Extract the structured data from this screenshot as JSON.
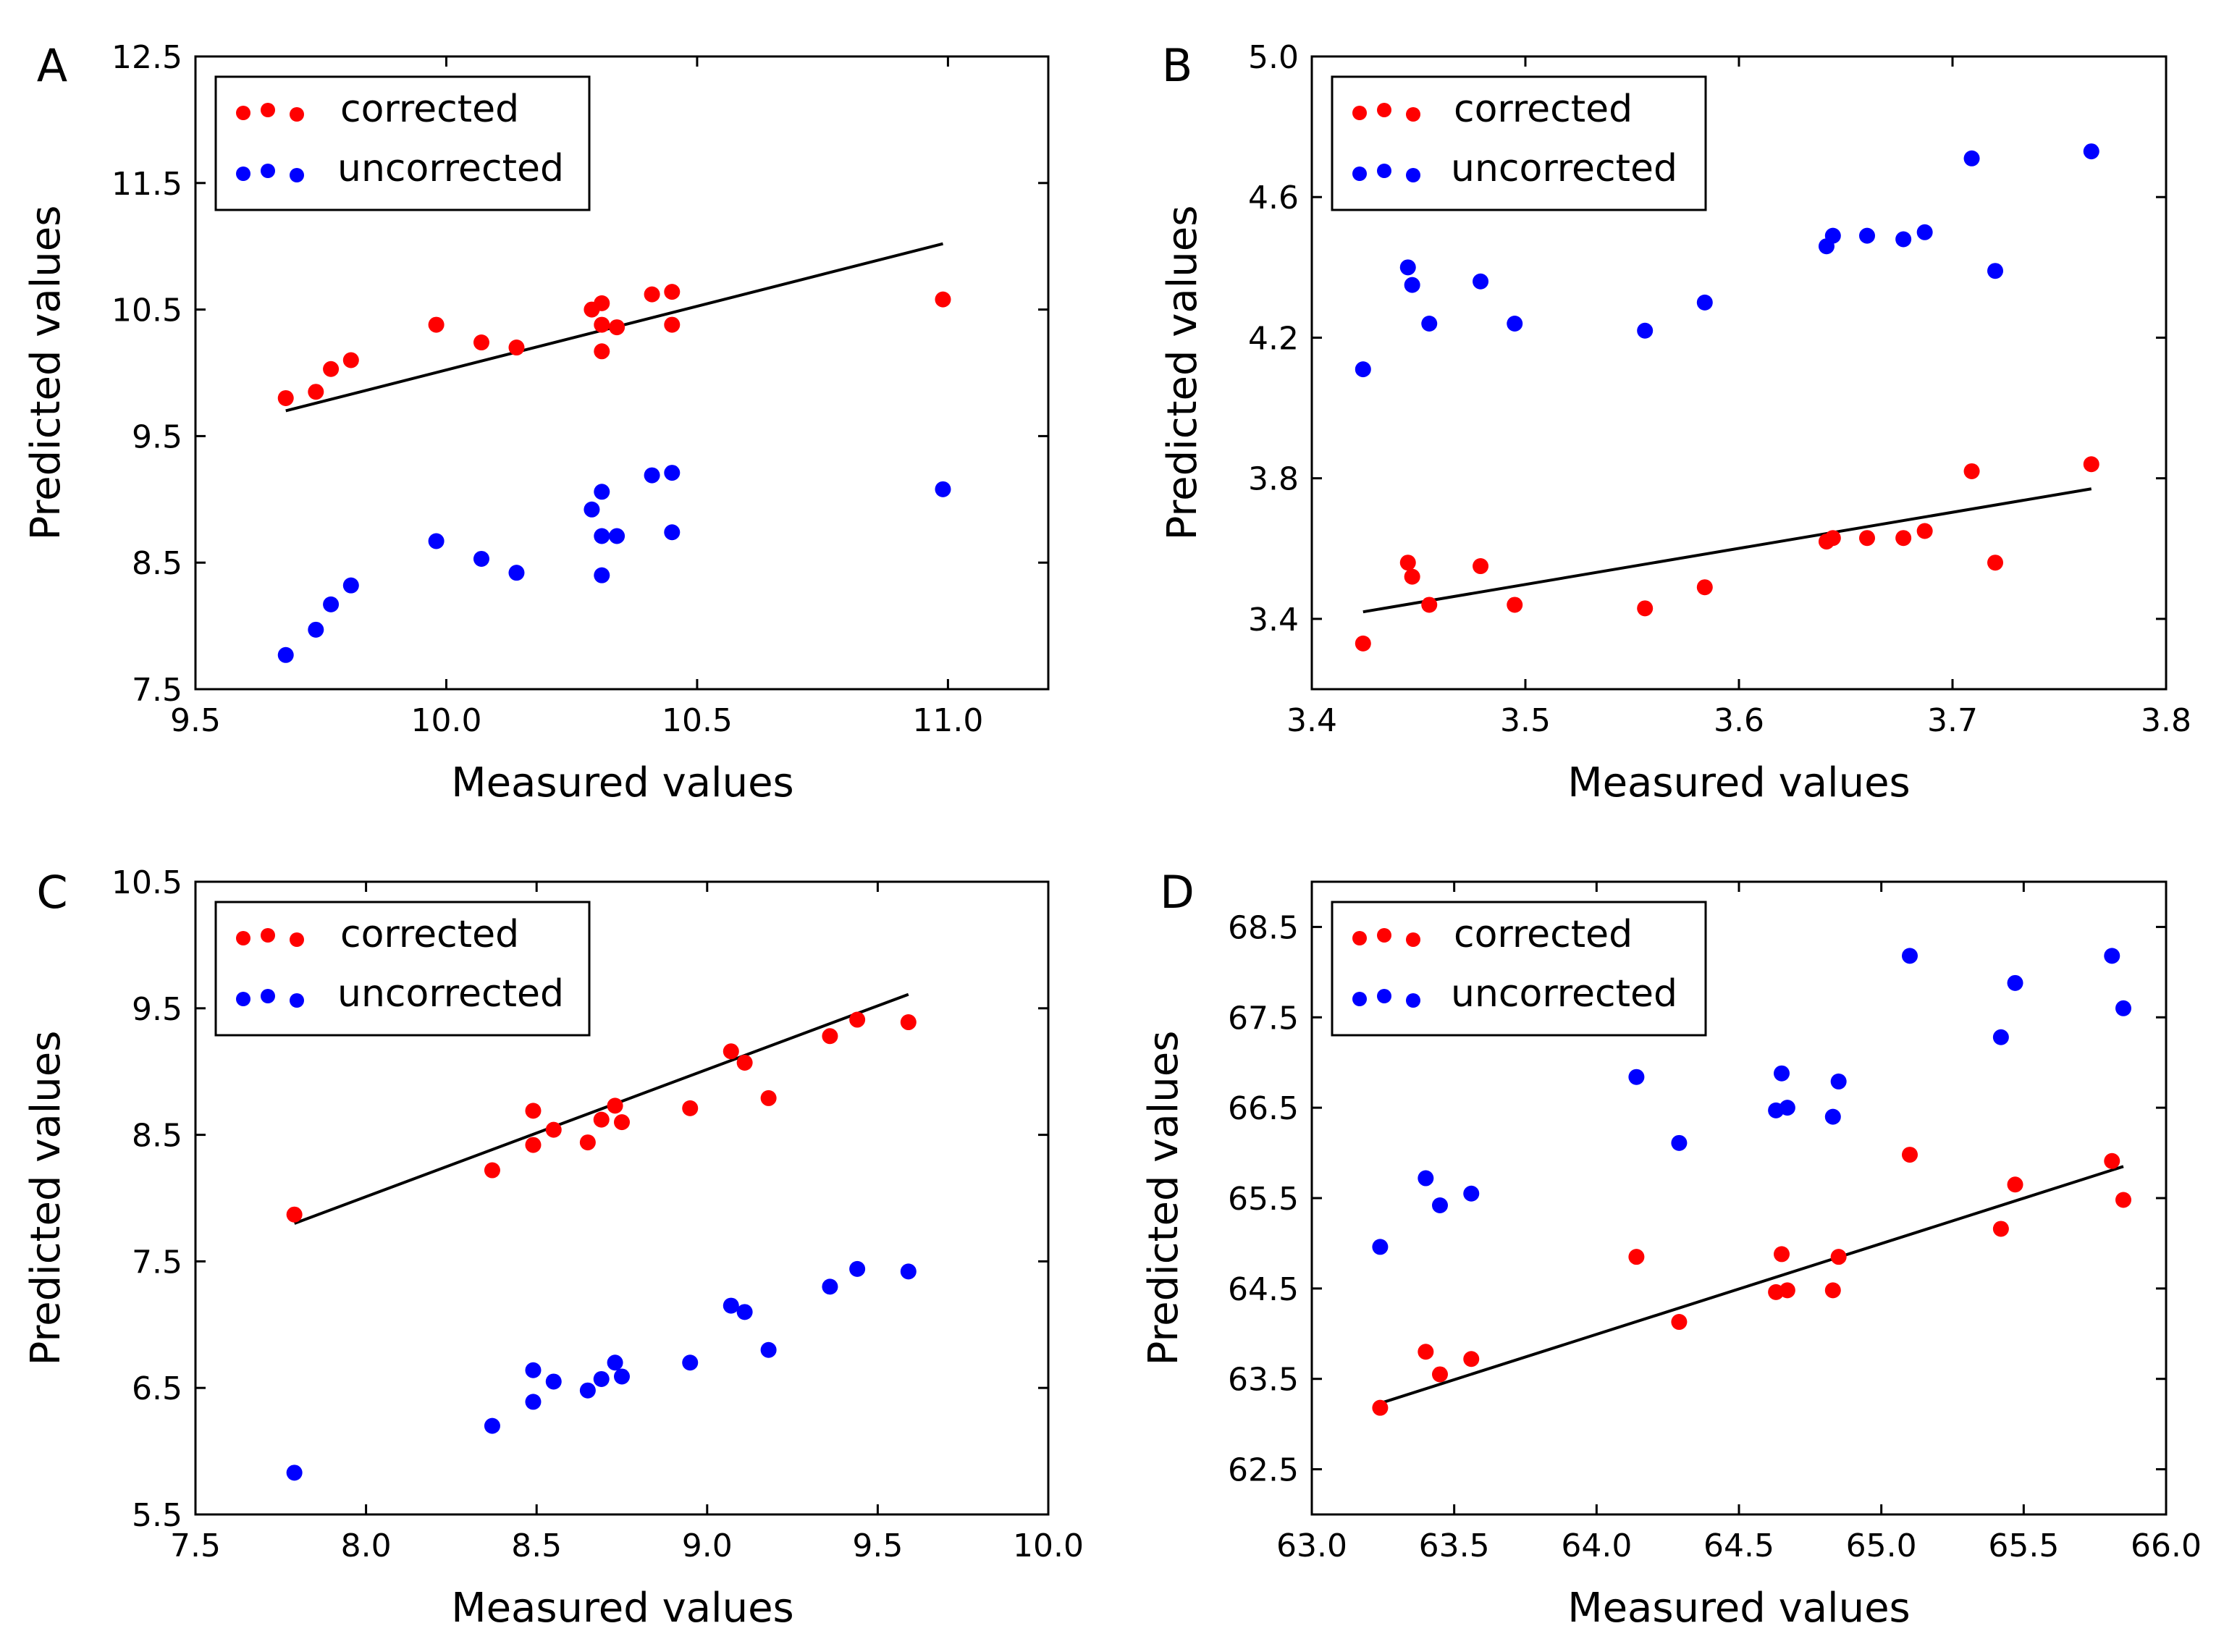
{
  "figure": {
    "panels": [
      "A",
      "B",
      "C",
      "D"
    ]
  },
  "colors": {
    "corrected": "#ff0000",
    "uncorrected": "#0000ff",
    "fit_line": "#000000",
    "axes": "#000000"
  },
  "chart_data": [
    {
      "panel": "A",
      "type": "scatter",
      "title": "",
      "xlabel": "Measured values",
      "ylabel": "Predicted values",
      "xlim": [
        9.5,
        11.2
      ],
      "ylim": [
        7.5,
        12.5
      ],
      "xticks": [
        "9.5",
        "10.0",
        "10.5",
        "11.0"
      ],
      "yticks": [
        "7.5",
        "8.5",
        "9.5",
        "10.5",
        "11.5",
        "12.5"
      ],
      "legend": {
        "position": "top-left",
        "entries": [
          "corrected",
          "uncorrected"
        ]
      },
      "series": [
        {
          "name": "corrected",
          "x": [
            9.68,
            9.74,
            9.77,
            9.81,
            9.98,
            10.07,
            10.14,
            10.29,
            10.31,
            10.31,
            10.31,
            10.34,
            10.41,
            10.45,
            10.45,
            10.99
          ],
          "y": [
            9.8,
            9.85,
            10.03,
            10.1,
            10.38,
            10.24,
            10.2,
            10.5,
            10.55,
            10.38,
            10.17,
            10.36,
            10.62,
            10.64,
            10.38,
            10.58
          ]
        },
        {
          "name": "uncorrected",
          "x": [
            9.68,
            9.74,
            9.77,
            9.81,
            9.98,
            10.07,
            10.14,
            10.29,
            10.31,
            10.31,
            10.31,
            10.34,
            10.41,
            10.45,
            10.45,
            10.99
          ],
          "y": [
            7.77,
            7.97,
            8.17,
            8.32,
            8.67,
            8.53,
            8.42,
            8.92,
            9.06,
            8.71,
            8.4,
            8.71,
            9.19,
            9.21,
            8.74,
            9.08
          ]
        }
      ],
      "fit_line": {
        "x": [
          9.68,
          10.99
        ],
        "y": [
          9.7,
          11.02
        ]
      }
    },
    {
      "panel": "B",
      "type": "scatter",
      "title": "",
      "xlabel": "Measured values",
      "ylabel": "Predicted values",
      "xlim": [
        3.4,
        3.8
      ],
      "ylim": [
        3.2,
        5.0
      ],
      "xticks": [
        "3.4",
        "3.5",
        "3.6",
        "3.7",
        "3.8"
      ],
      "yticks": [
        "3.4",
        "3.8",
        "4.2",
        "4.6",
        "5.0"
      ],
      "legend": {
        "position": "top-left",
        "entries": [
          "corrected",
          "uncorrected"
        ]
      },
      "series": [
        {
          "name": "corrected",
          "x": [
            3.424,
            3.445,
            3.447,
            3.455,
            3.479,
            3.495,
            3.556,
            3.584,
            3.641,
            3.644,
            3.66,
            3.677,
            3.687,
            3.709,
            3.72,
            3.765
          ],
          "y": [
            3.33,
            3.56,
            3.52,
            3.44,
            3.55,
            3.44,
            3.43,
            3.49,
            3.62,
            3.63,
            3.63,
            3.63,
            3.65,
            3.82,
            3.56,
            3.84
          ]
        },
        {
          "name": "uncorrected",
          "x": [
            3.424,
            3.445,
            3.447,
            3.455,
            3.479,
            3.495,
            3.556,
            3.584,
            3.641,
            3.644,
            3.66,
            3.677,
            3.687,
            3.709,
            3.72,
            3.765
          ],
          "y": [
            4.11,
            4.4,
            4.35,
            4.24,
            4.36,
            4.24,
            4.22,
            4.3,
            4.46,
            4.49,
            4.49,
            4.48,
            4.5,
            4.71,
            4.39,
            4.73
          ]
        }
      ],
      "fit_line": {
        "x": [
          3.424,
          3.765
        ],
        "y": [
          3.42,
          3.77
        ]
      }
    },
    {
      "panel": "C",
      "type": "scatter",
      "title": "",
      "xlabel": "Measured values",
      "ylabel": "Predicted values",
      "xlim": [
        7.5,
        10.0
      ],
      "ylim": [
        5.5,
        10.5
      ],
      "xticks": [
        "7.5",
        "8.0",
        "8.5",
        "9.0",
        "9.5",
        "10.0"
      ],
      "yticks": [
        "5.5",
        "6.5",
        "7.5",
        "8.5",
        "9.5",
        "10.5"
      ],
      "legend": {
        "position": "top-left",
        "entries": [
          "corrected",
          "uncorrected"
        ]
      },
      "series": [
        {
          "name": "corrected",
          "x": [
            7.79,
            8.37,
            8.49,
            8.49,
            8.55,
            8.65,
            8.69,
            8.73,
            8.75,
            8.95,
            9.07,
            9.11,
            9.18,
            9.36,
            9.44,
            9.59
          ],
          "y": [
            7.87,
            8.22,
            8.69,
            8.42,
            8.54,
            8.44,
            8.62,
            8.73,
            8.6,
            8.71,
            9.16,
            9.07,
            8.79,
            9.28,
            9.41,
            9.39
          ]
        },
        {
          "name": "uncorrected",
          "x": [
            7.79,
            8.37,
            8.49,
            8.49,
            8.55,
            8.65,
            8.69,
            8.73,
            8.75,
            8.95,
            9.07,
            9.11,
            9.18,
            9.36,
            9.44,
            9.59
          ],
          "y": [
            5.83,
            6.2,
            6.64,
            6.39,
            6.55,
            6.48,
            6.57,
            6.7,
            6.59,
            6.7,
            7.15,
            7.1,
            6.8,
            7.3,
            7.44,
            7.42
          ]
        }
      ],
      "fit_line": {
        "x": [
          7.79,
          9.59
        ],
        "y": [
          7.8,
          9.61
        ]
      }
    },
    {
      "panel": "D",
      "type": "scatter",
      "title": "",
      "xlabel": "Measured values",
      "ylabel": "Predicted values",
      "xlim": [
        63.0,
        66.0
      ],
      "ylim": [
        62.0,
        69.0
      ],
      "xticks": [
        "63.0",
        "63.5",
        "64.0",
        "64.5",
        "65.0",
        "65.5",
        "66.0"
      ],
      "yticks": [
        "62.5",
        "63.5",
        "64.5",
        "65.5",
        "66.5",
        "67.5",
        "68.5"
      ],
      "legend": {
        "position": "top-left",
        "entries": [
          "corrected",
          "uncorrected"
        ]
      },
      "series": [
        {
          "name": "corrected",
          "x": [
            63.24,
            63.4,
            63.45,
            63.56,
            64.14,
            64.29,
            64.63,
            64.65,
            64.67,
            64.83,
            64.85,
            65.1,
            65.42,
            65.47,
            65.81,
            65.85
          ],
          "y": [
            63.18,
            63.8,
            63.55,
            63.72,
            64.85,
            64.13,
            64.46,
            64.88,
            64.48,
            64.48,
            64.85,
            65.98,
            65.16,
            65.65,
            65.91,
            65.48
          ]
        },
        {
          "name": "uncorrected",
          "x": [
            63.24,
            63.4,
            63.45,
            63.56,
            64.14,
            64.29,
            64.63,
            64.65,
            64.67,
            64.83,
            64.85,
            65.1,
            65.42,
            65.47,
            65.81,
            65.85
          ],
          "y": [
            64.96,
            65.72,
            65.42,
            65.55,
            66.84,
            66.11,
            66.47,
            66.88,
            66.5,
            66.4,
            66.79,
            68.18,
            67.28,
            67.88,
            68.18,
            67.6
          ]
        }
      ],
      "fit_line": {
        "x": [
          63.24,
          65.85
        ],
        "y": [
          63.23,
          65.85
        ]
      }
    }
  ]
}
